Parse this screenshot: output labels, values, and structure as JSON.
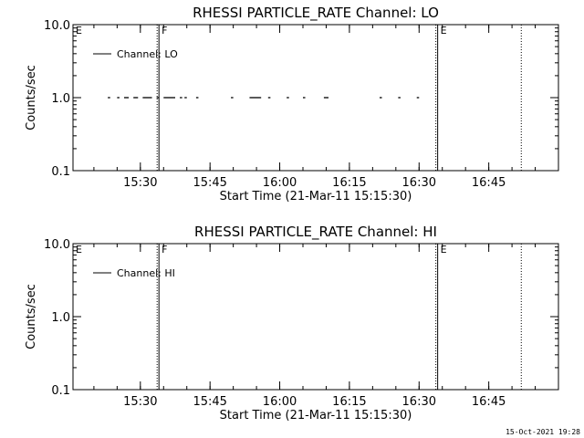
{
  "footer_timestamp": "15-Oct-2021 19:28",
  "chart_data": [
    {
      "type": "line",
      "title": "RHESSI PARTICLE_RATE Channel: LO",
      "xlabel": "Start Time (21-Mar-11 15:15:30)",
      "ylabel": "Counts/sec",
      "y_scale": "log",
      "ylim": [
        0.1,
        10.0
      ],
      "yticks": [
        "10.0",
        "1.0",
        "0.1"
      ],
      "xlim": [
        "15:15:30",
        "17:00:00"
      ],
      "xticks": [
        "15:30",
        "15:45",
        "16:00",
        "16:15",
        "16:30",
        "16:45"
      ],
      "grid": false,
      "legend": {
        "position": "top-left",
        "entries": [
          "Channel: LO"
        ]
      },
      "markers": [
        {
          "label": "E",
          "time": "15:15:30",
          "style": "none"
        },
        {
          "label": "F",
          "time": "15:34:00",
          "style": "solid"
        },
        {
          "label": "E",
          "time": "16:34:00",
          "style": "solid"
        },
        {
          "label": "",
          "time": "16:52:00",
          "style": "dotted"
        }
      ],
      "series": [
        {
          "name": "Channel: LO",
          "value": 1.0,
          "segments": [
            [
              "15:23:00",
              "15:23:30"
            ],
            [
              "15:25:00",
              "15:25:30"
            ],
            [
              "15:26:30",
              "15:27:30"
            ],
            [
              "15:28:30",
              "15:29:30"
            ],
            [
              "15:30:30",
              "15:32:30"
            ],
            [
              "15:33:30",
              "15:34:00"
            ],
            [
              "15:35:00",
              "15:37:30"
            ],
            [
              "15:38:30",
              "15:39:00"
            ],
            [
              "15:39:30",
              "15:40:00"
            ],
            [
              "15:42:00",
              "15:42:30"
            ],
            [
              "15:49:30",
              "15:50:00"
            ],
            [
              "15:53:30",
              "15:56:00"
            ],
            [
              "15:57:30",
              "15:58:00"
            ],
            [
              "16:01:30",
              "16:02:00"
            ],
            [
              "16:05:00",
              "16:05:30"
            ],
            [
              "16:09:30",
              "16:10:30"
            ],
            [
              "16:21:30",
              "16:22:00"
            ],
            [
              "16:25:30",
              "16:26:00"
            ],
            [
              "16:29:30",
              "16:30:00"
            ]
          ]
        }
      ]
    },
    {
      "type": "line",
      "title": "RHESSI PARTICLE_RATE Channel: HI",
      "xlabel": "Start Time (21-Mar-11 15:15:30)",
      "ylabel": "Counts/sec",
      "y_scale": "log",
      "ylim": [
        0.1,
        10.0
      ],
      "yticks": [
        "10.0",
        "1.0",
        "0.1"
      ],
      "xlim": [
        "15:15:30",
        "17:00:00"
      ],
      "xticks": [
        "15:30",
        "15:45",
        "16:00",
        "16:15",
        "16:30",
        "16:45"
      ],
      "grid": false,
      "legend": {
        "position": "top-left",
        "entries": [
          "Channel: HI"
        ]
      },
      "markers": [
        {
          "label": "E",
          "time": "15:15:30",
          "style": "none"
        },
        {
          "label": "F",
          "time": "15:34:00",
          "style": "solid"
        },
        {
          "label": "E",
          "time": "16:34:00",
          "style": "solid"
        },
        {
          "label": "",
          "time": "16:52:00",
          "style": "dotted"
        }
      ],
      "series": [
        {
          "name": "Channel: HI",
          "value": 1.0,
          "segments": []
        }
      ]
    }
  ]
}
